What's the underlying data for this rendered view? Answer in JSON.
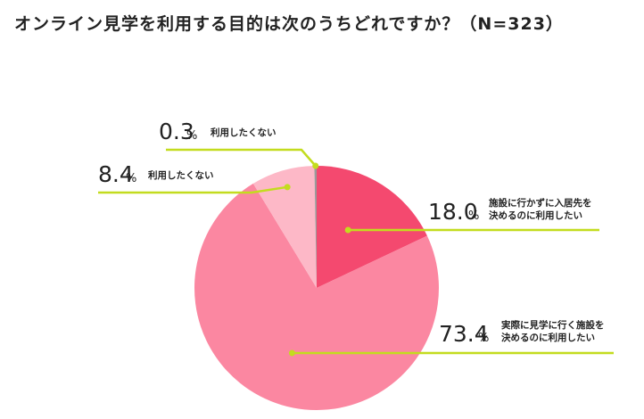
{
  "chart_data": {
    "type": "pie",
    "title": "オンライン見学を利用する目的は次のうちどれですか？（N=323）",
    "start": "top",
    "direction": "clockwise",
    "unit": "%",
    "slices": [
      {
        "label_lines": [
          "施設に行かずに入居先を",
          "決めるのに利用したい"
        ],
        "value": 18.0,
        "value_text": "18.0",
        "color": "#f4496f"
      },
      {
        "label_lines": [
          "実際に見学に行く施設を",
          "決めるのに利用したい"
        ],
        "value": 73.4,
        "value_text": "73.4",
        "color": "#fb87a1"
      },
      {
        "label_lines": [
          "利用したくない"
        ],
        "value": 8.4,
        "value_text": "8.4",
        "color": "#fdb8c7"
      },
      {
        "label_lines": [
          "利用したくない"
        ],
        "value": 0.3,
        "value_text": "0.3",
        "color": "#9a9a9a"
      }
    ],
    "leader_color": "#c3dc1e"
  }
}
